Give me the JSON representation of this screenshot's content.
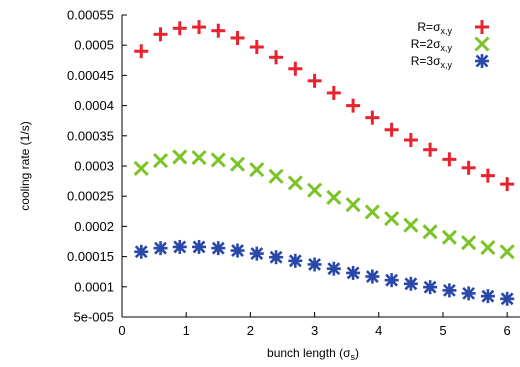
{
  "chart_data": {
    "type": "scatter",
    "xlabel": "bunch length (σs)",
    "xlabel_parts": {
      "text": "bunch length (σ",
      "sub": "s",
      "close": ")"
    },
    "ylabel": "cooling rate (1/s)",
    "xlim": [
      0,
      6.2
    ],
    "ylim": [
      5e-05,
      0.00055
    ],
    "x_ticks": [
      0,
      1,
      2,
      3,
      4,
      5,
      6
    ],
    "x_tick_labels": [
      "0",
      "1",
      "2",
      "3",
      "4",
      "5",
      "6"
    ],
    "y_ticks": [
      5e-05,
      0.0001,
      0.00015,
      0.0002,
      0.00025,
      0.0003,
      0.00035,
      0.0004,
      0.00045,
      0.0005,
      0.00055
    ],
    "y_tick_labels": [
      "5e-005",
      "0.0001",
      "0.00015",
      "0.0002",
      "0.00025",
      "0.0003",
      "0.00035",
      "0.0004",
      "0.00045",
      "0.0005",
      "0.00055"
    ],
    "grid": false,
    "legend_position": "top-right",
    "x": [
      0.3,
      0.6,
      0.9,
      1.2,
      1.5,
      1.8,
      2.1,
      2.4,
      2.7,
      3.0,
      3.3,
      3.6,
      3.9,
      4.2,
      4.5,
      4.8,
      5.1,
      5.4,
      5.7,
      6.0
    ],
    "series": [
      {
        "name": "R=σx,y",
        "name_parts": {
          "pre": "R=",
          "greek": "σ",
          "sub": "x,y"
        },
        "marker": "plus",
        "color": "#e8222e",
        "values": [
          0.00049,
          0.000518,
          0.000528,
          0.00053,
          0.000524,
          0.000512,
          0.000497,
          0.00048,
          0.000461,
          0.000441,
          0.000421,
          0.0004,
          0.00038,
          0.00036,
          0.000343,
          0.000327,
          0.000311,
          0.000297,
          0.000284,
          0.00027
        ]
      },
      {
        "name": "R=2σx,y",
        "name_parts": {
          "pre": "R=2",
          "greek": "σ",
          "sub": "x,y"
        },
        "marker": "cross",
        "color": "#7bc427",
        "values": [
          0.000296,
          0.000309,
          0.000315,
          0.000314,
          0.00031,
          0.000303,
          0.000294,
          0.000283,
          0.000272,
          0.00026,
          0.000248,
          0.000236,
          0.000224,
          0.000213,
          0.000202,
          0.000191,
          0.000182,
          0.000173,
          0.000165,
          0.000158
        ]
      },
      {
        "name": "R=3σx,y",
        "name_parts": {
          "pre": "R=3",
          "greek": "σ",
          "sub": "x,y"
        },
        "marker": "asterisk",
        "color": "#2a48a8",
        "values": [
          0.000158,
          0.000164,
          0.000166,
          0.000166,
          0.000164,
          0.00016,
          0.000155,
          0.000149,
          0.000143,
          0.000137,
          0.00013,
          0.000123,
          0.000117,
          0.000111,
          0.000105,
          9.94e-05,
          9.41e-05,
          8.91e-05,
          8.45e-05,
          8.01e-05
        ]
      }
    ]
  }
}
